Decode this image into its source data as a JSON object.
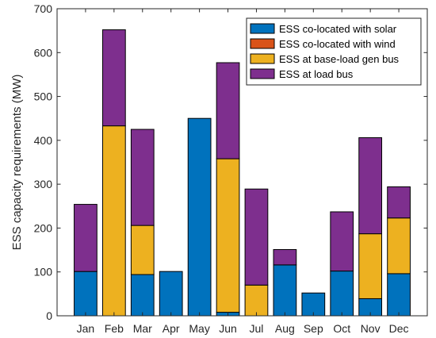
{
  "chart_data": {
    "type": "bar",
    "stacked": true,
    "categories": [
      "Jan",
      "Feb",
      "Mar",
      "Apr",
      "May",
      "Jun",
      "Jul",
      "Aug",
      "Sep",
      "Oct",
      "Nov",
      "Dec"
    ],
    "series": [
      {
        "name": "ESS co-located with solar",
        "color": "#0072BD",
        "values": [
          101,
          0,
          94,
          101,
          450,
          8,
          0,
          116,
          52,
          102,
          39,
          96
        ]
      },
      {
        "name": "ESS co-located with wind",
        "color": "#D95319",
        "values": [
          0,
          0,
          0,
          0,
          0,
          0,
          0,
          0,
          0,
          0,
          0,
          0
        ]
      },
      {
        "name": "ESS at base-load gen bus",
        "color": "#EDB120",
        "values": [
          0,
          433,
          112,
          0,
          0,
          350,
          70,
          0,
          0,
          0,
          148,
          127
        ]
      },
      {
        "name": "ESS at load bus",
        "color": "#7E2F8E",
        "values": [
          153,
          219,
          219,
          0,
          0,
          219,
          219,
          35,
          0,
          135,
          219,
          71
        ]
      }
    ],
    "title": "",
    "xlabel": "",
    "ylabel": "ESS capacity requirements (MW)",
    "ylim": [
      0,
      700
    ],
    "yticks": [
      "0",
      "100",
      "200",
      "300",
      "400",
      "500",
      "600",
      "700"
    ],
    "grid": false,
    "legend_position": "top-right"
  }
}
